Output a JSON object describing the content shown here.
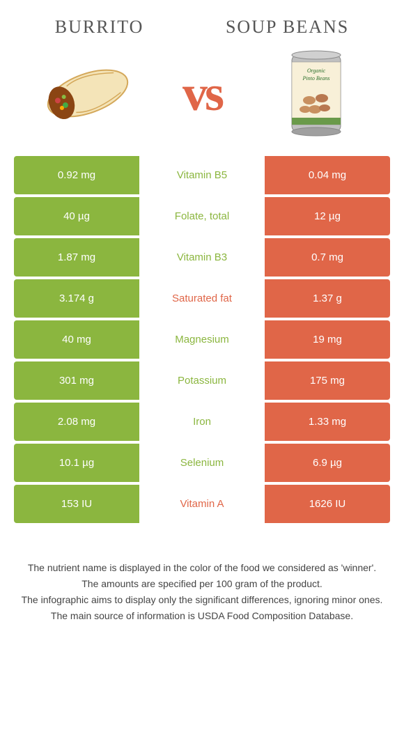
{
  "colors": {
    "left": "#8bb63f",
    "right": "#e06648",
    "bg": "#ffffff"
  },
  "foods": {
    "left": {
      "title": "Burrito"
    },
    "right": {
      "title": "Soup beans"
    }
  },
  "vs": "vs",
  "rows": [
    {
      "left": "0.92 mg",
      "nutrient": "Vitamin B5",
      "right": "0.04 mg",
      "winner": "left"
    },
    {
      "left": "40 µg",
      "nutrient": "Folate, total",
      "right": "12 µg",
      "winner": "left"
    },
    {
      "left": "1.87 mg",
      "nutrient": "Vitamin B3",
      "right": "0.7 mg",
      "winner": "left"
    },
    {
      "left": "3.174 g",
      "nutrient": "Saturated fat",
      "right": "1.37 g",
      "winner": "right"
    },
    {
      "left": "40 mg",
      "nutrient": "Magnesium",
      "right": "19 mg",
      "winner": "left"
    },
    {
      "left": "301 mg",
      "nutrient": "Potassium",
      "right": "175 mg",
      "winner": "left"
    },
    {
      "left": "2.08 mg",
      "nutrient": "Iron",
      "right": "1.33 mg",
      "winner": "left"
    },
    {
      "left": "10.1 µg",
      "nutrient": "Selenium",
      "right": "6.9 µg",
      "winner": "left"
    },
    {
      "left": "153 IU",
      "nutrient": "Vitamin A",
      "right": "1626 IU",
      "winner": "right"
    }
  ],
  "footnotes": [
    "The nutrient name is displayed in the color of the food we considered as 'winner'.",
    "The amounts are specified per 100 gram of the product.",
    "The infographic aims to display only the significant differences, ignoring minor ones.",
    "The main source of information is USDA Food Composition Database."
  ]
}
